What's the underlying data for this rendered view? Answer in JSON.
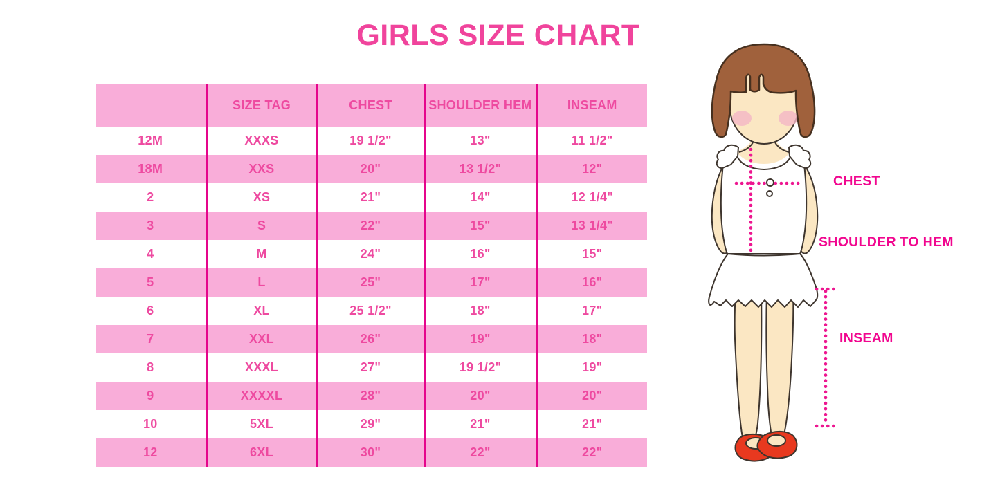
{
  "title": "GIRLS SIZE CHART",
  "chart_data": {
    "type": "table",
    "title": "GIRLS SIZE CHART",
    "columns": [
      "",
      "SIZE TAG",
      "CHEST",
      "SHOULDER HEM",
      "INSEAM"
    ],
    "rows": [
      [
        "12M",
        "XXXS",
        "19 1/2\"",
        "13\"",
        "11 1/2\""
      ],
      [
        "18M",
        "XXS",
        "20\"",
        "13 1/2\"",
        "12\""
      ],
      [
        "2",
        "XS",
        "21\"",
        "14\"",
        "12 1/4\""
      ],
      [
        "3",
        "S",
        "22\"",
        "15\"",
        "13 1/4\""
      ],
      [
        "4",
        "M",
        "24\"",
        "16\"",
        "15\""
      ],
      [
        "5",
        "L",
        "25\"",
        "17\"",
        "16\""
      ],
      [
        "6",
        "XL",
        "25 1/2\"",
        "18\"",
        "17\""
      ],
      [
        "7",
        "XXL",
        "26\"",
        "19\"",
        "18\""
      ],
      [
        "8",
        "XXXL",
        "27\"",
        "19 1/2\"",
        "19\""
      ],
      [
        "9",
        "XXXXL",
        "28\"",
        "20\"",
        "20\""
      ],
      [
        "10",
        "5XL",
        "29\"",
        "21\"",
        "21\""
      ],
      [
        "12",
        "6XL",
        "30\"",
        "22\"",
        "22\""
      ]
    ],
    "row_style": "alternating white/pink starting white",
    "legend_position": "none",
    "grid": "vertical separators only"
  },
  "figure": {
    "labels": {
      "chest": "CHEST",
      "shoulder_to_hem": "SHOULDER TO HEM",
      "inseam": "INSEAM"
    }
  },
  "colors": {
    "title_pink": "#F0449C",
    "row_pink": "#F9ADD9",
    "separator_magenta": "#E5058C",
    "cell_text_pink": "#EE4AA0",
    "label_magenta": "#F1068F",
    "dotted_line_magenta": "#ED1690",
    "hair_brown": "#A0613C",
    "skin": "#FBE7C3",
    "blush": "#F4B6C6",
    "shoe_red": "#E8391F"
  }
}
